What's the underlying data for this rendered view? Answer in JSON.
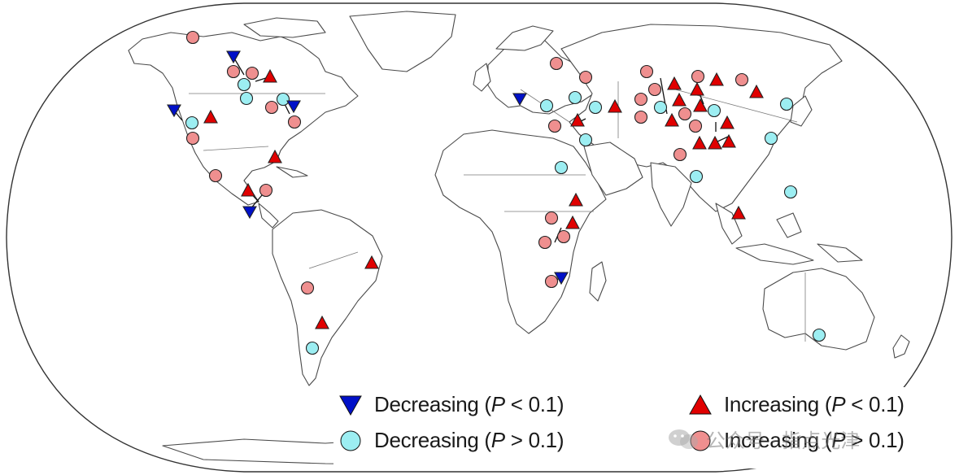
{
  "legend": {
    "items": [
      {
        "key": "dec_sig",
        "marker": "triangle-down",
        "color": "#0010c8",
        "label_pre": "Decreasing (",
        "p": "P",
        "label_post": " < 0.1)"
      },
      {
        "key": "dec_ns",
        "marker": "circle",
        "color": "#9ceef2",
        "label_pre": "Decreasing (",
        "p": "P",
        "label_post": " > 0.1)"
      },
      {
        "key": "inc_sig",
        "marker": "triangle-up",
        "color": "#e00000",
        "label_pre": "Increasing (",
        "p": "P",
        "label_post": " < 0.1)"
      },
      {
        "key": "inc_ns",
        "marker": "circle",
        "color": "#ef8f8f",
        "label_pre": "Increasing (",
        "p": "P",
        "label_post": " > 0.1)"
      }
    ]
  },
  "watermark": {
    "text": "公众号 · 指点光津",
    "icon": "wechat-icon"
  },
  "colors": {
    "dec_sig": "#0010c8",
    "dec_ns": "#9ceef2",
    "inc_sig": "#e00000",
    "inc_ns": "#ef8f8f"
  }
}
